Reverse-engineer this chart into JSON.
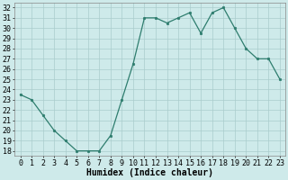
{
  "x": [
    0,
    1,
    2,
    3,
    4,
    5,
    6,
    7,
    8,
    9,
    10,
    11,
    12,
    13,
    14,
    15,
    16,
    17,
    18,
    19,
    20,
    21,
    22,
    23
  ],
  "y": [
    23.5,
    23.0,
    21.5,
    20.0,
    19.0,
    18.0,
    18.0,
    18.0,
    19.5,
    23.0,
    26.5,
    31.0,
    31.0,
    30.5,
    31.0,
    31.5,
    29.5,
    31.5,
    32.0,
    30.0,
    28.0,
    27.0,
    27.0,
    25.0
  ],
  "line_color": "#2e7d6e",
  "marker": "o",
  "marker_size": 1.8,
  "linewidth": 0.9,
  "bg_color": "#ceeaea",
  "grid_color": "#aacccc",
  "xlabel": "Humidex (Indice chaleur)",
  "xlabel_fontsize": 7,
  "tick_fontsize": 6,
  "xlim": [
    -0.5,
    23.5
  ],
  "ylim": [
    17.5,
    32.5
  ],
  "yticks": [
    18,
    19,
    20,
    21,
    22,
    23,
    24,
    25,
    26,
    27,
    28,
    29,
    30,
    31,
    32
  ],
  "xticks": [
    0,
    1,
    2,
    3,
    4,
    5,
    6,
    7,
    8,
    9,
    10,
    11,
    12,
    13,
    14,
    15,
    16,
    17,
    18,
    19,
    20,
    21,
    22,
    23
  ]
}
